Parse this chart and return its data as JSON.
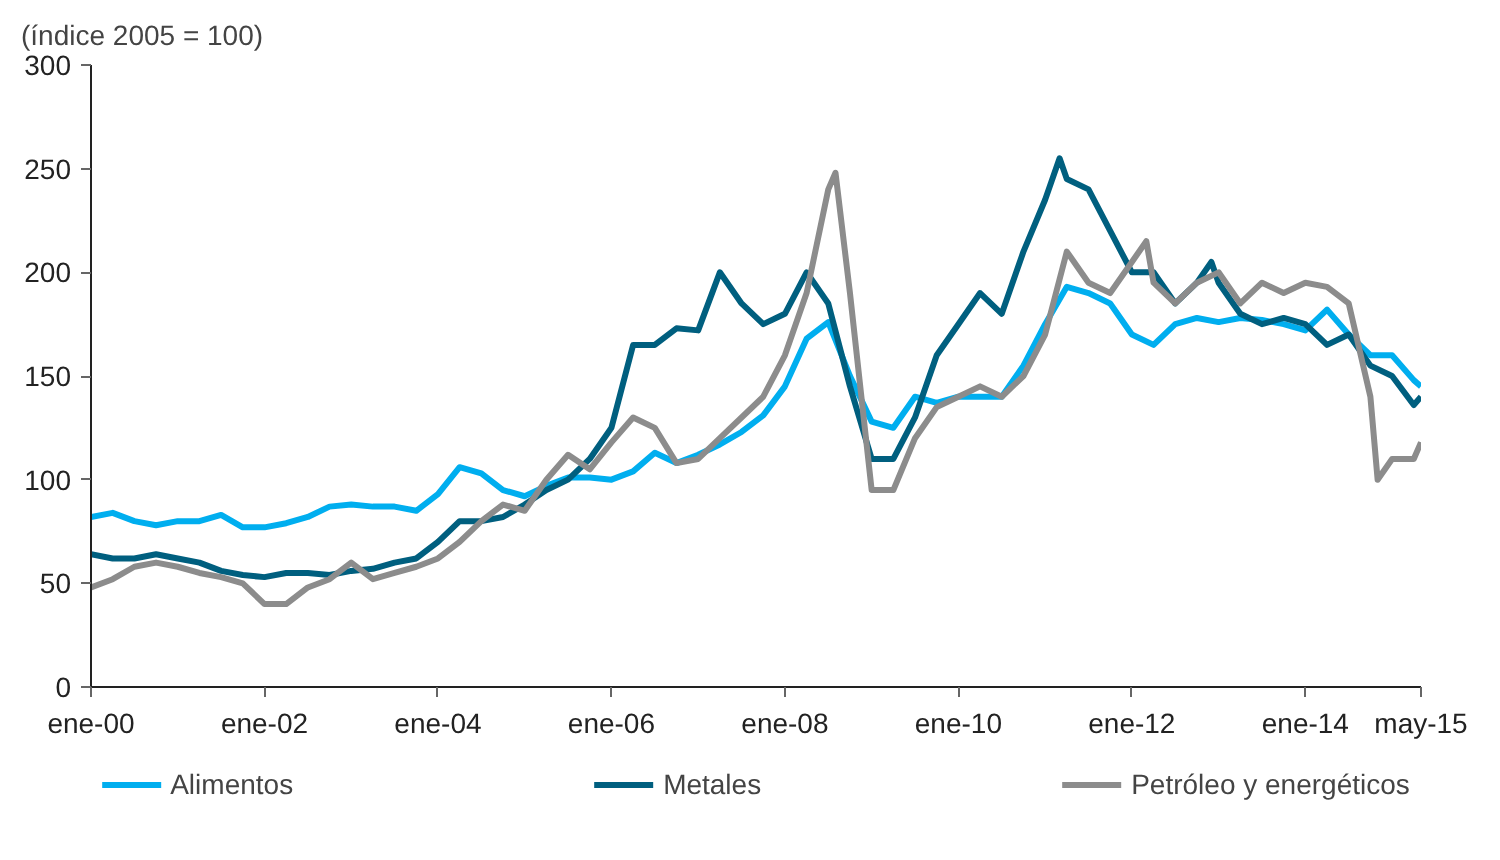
{
  "chart_data": {
    "type": "line",
    "ylabel": "(índice 2005 = 100)",
    "xlim": [
      "2000-01",
      "2015-05"
    ],
    "xticks": [
      {
        "value": "2000-01",
        "label": "ene-00"
      },
      {
        "value": "2002-01",
        "label": "ene-02"
      },
      {
        "value": "2004-01",
        "label": "ene-04"
      },
      {
        "value": "2006-01",
        "label": "ene-06"
      },
      {
        "value": "2008-01",
        "label": "ene-08"
      },
      {
        "value": "2010-01",
        "label": "ene-10"
      },
      {
        "value": "2012-01",
        "label": "ene-12"
      },
      {
        "value": "2014-01",
        "label": "ene-14"
      },
      {
        "value": "2015-05",
        "label": "may-15"
      }
    ],
    "ylim": [
      0,
      300
    ],
    "yticks": [
      0,
      50,
      100,
      150,
      200,
      250,
      300
    ],
    "grid": false,
    "legend": "bottom",
    "series": [
      {
        "name": "Alimentos",
        "color": "#00aeef",
        "x": [
          "2000-01",
          "2000-04",
          "2000-07",
          "2000-10",
          "2001-01",
          "2001-04",
          "2001-07",
          "2001-10",
          "2002-01",
          "2002-04",
          "2002-07",
          "2002-10",
          "2003-01",
          "2003-04",
          "2003-07",
          "2003-10",
          "2004-01",
          "2004-04",
          "2004-07",
          "2004-10",
          "2005-01",
          "2005-04",
          "2005-07",
          "2005-10",
          "2006-01",
          "2006-04",
          "2006-07",
          "2006-10",
          "2007-01",
          "2007-04",
          "2007-07",
          "2007-10",
          "2008-01",
          "2008-04",
          "2008-07",
          "2008-10",
          "2009-01",
          "2009-04",
          "2009-07",
          "2009-10",
          "2010-01",
          "2010-04",
          "2010-07",
          "2010-10",
          "2011-01",
          "2011-04",
          "2011-07",
          "2011-10",
          "2012-01",
          "2012-04",
          "2012-07",
          "2012-10",
          "2013-01",
          "2013-04",
          "2013-07",
          "2013-10",
          "2014-01",
          "2014-04",
          "2014-07",
          "2014-10",
          "2015-01",
          "2015-04",
          "2015-05"
        ],
        "values": [
          82,
          84,
          80,
          78,
          80,
          80,
          83,
          77,
          77,
          79,
          82,
          87,
          88,
          87,
          87,
          85,
          93,
          106,
          103,
          95,
          92,
          97,
          101,
          101,
          100,
          104,
          113,
          108,
          112,
          117,
          123,
          131,
          145,
          168,
          176,
          150,
          128,
          125,
          140,
          137,
          140,
          140,
          140,
          155,
          175,
          193,
          190,
          185,
          170,
          165,
          175,
          178,
          176,
          178,
          177,
          175,
          172,
          182,
          170,
          160,
          160,
          148,
          145
        ]
      },
      {
        "name": "Metales",
        "color": "#005f7f",
        "x": [
          "2000-01",
          "2000-04",
          "2000-07",
          "2000-10",
          "2001-01",
          "2001-04",
          "2001-07",
          "2001-10",
          "2002-01",
          "2002-04",
          "2002-07",
          "2002-10",
          "2003-01",
          "2003-04",
          "2003-07",
          "2003-10",
          "2004-01",
          "2004-04",
          "2004-07",
          "2004-10",
          "2005-01",
          "2005-04",
          "2005-07",
          "2005-10",
          "2006-01",
          "2006-04",
          "2006-07",
          "2006-10",
          "2007-01",
          "2007-04",
          "2007-07",
          "2007-10",
          "2008-01",
          "2008-04",
          "2008-07",
          "2008-10",
          "2009-01",
          "2009-04",
          "2009-07",
          "2009-10",
          "2010-01",
          "2010-04",
          "2010-07",
          "2010-10",
          "2011-01",
          "2011-03",
          "2011-04",
          "2011-07",
          "2011-10",
          "2012-01",
          "2012-04",
          "2012-07",
          "2012-10",
          "2012-12",
          "2013-01",
          "2013-04",
          "2013-07",
          "2013-10",
          "2014-01",
          "2014-04",
          "2014-07",
          "2014-10",
          "2015-01",
          "2015-04",
          "2015-05"
        ],
        "values": [
          64,
          62,
          62,
          64,
          62,
          60,
          56,
          54,
          53,
          55,
          55,
          54,
          56,
          57,
          60,
          62,
          70,
          80,
          80,
          82,
          88,
          95,
          100,
          110,
          125,
          165,
          165,
          173,
          172,
          200,
          185,
          175,
          180,
          200,
          185,
          145,
          110,
          110,
          130,
          160,
          175,
          190,
          180,
          210,
          235,
          255,
          245,
          240,
          220,
          200,
          200,
          185,
          195,
          205,
          195,
          180,
          175,
          178,
          175,
          165,
          170,
          155,
          150,
          136,
          140
        ]
      },
      {
        "name": "Petróleo y energéticos",
        "color": "#8c8c8c",
        "x": [
          "2000-01",
          "2000-04",
          "2000-07",
          "2000-10",
          "2001-01",
          "2001-04",
          "2001-07",
          "2001-10",
          "2002-01",
          "2002-04",
          "2002-07",
          "2002-10",
          "2003-01",
          "2003-04",
          "2003-07",
          "2003-10",
          "2004-01",
          "2004-04",
          "2004-07",
          "2004-10",
          "2005-01",
          "2005-04",
          "2005-07",
          "2005-10",
          "2006-01",
          "2006-04",
          "2006-07",
          "2006-10",
          "2007-01",
          "2007-04",
          "2007-07",
          "2007-10",
          "2008-01",
          "2008-04",
          "2008-07",
          "2008-08",
          "2008-10",
          "2009-01",
          "2009-04",
          "2009-07",
          "2009-10",
          "2010-01",
          "2010-04",
          "2010-07",
          "2010-10",
          "2011-01",
          "2011-04",
          "2011-07",
          "2011-10",
          "2012-01",
          "2012-03",
          "2012-04",
          "2012-07",
          "2012-10",
          "2013-01",
          "2013-04",
          "2013-07",
          "2013-10",
          "2014-01",
          "2014-04",
          "2014-07",
          "2014-10",
          "2014-11",
          "2015-01",
          "2015-04",
          "2015-05"
        ],
        "values": [
          48,
          52,
          58,
          60,
          58,
          55,
          53,
          50,
          40,
          40,
          48,
          52,
          60,
          52,
          55,
          58,
          62,
          70,
          80,
          88,
          85,
          100,
          112,
          105,
          118,
          130,
          125,
          108,
          110,
          120,
          130,
          140,
          160,
          190,
          240,
          248,
          190,
          95,
          95,
          120,
          135,
          140,
          145,
          140,
          150,
          170,
          210,
          195,
          190,
          205,
          215,
          195,
          185,
          195,
          200,
          185,
          195,
          190,
          195,
          193,
          185,
          140,
          100,
          110,
          110,
          118
        ]
      }
    ]
  }
}
